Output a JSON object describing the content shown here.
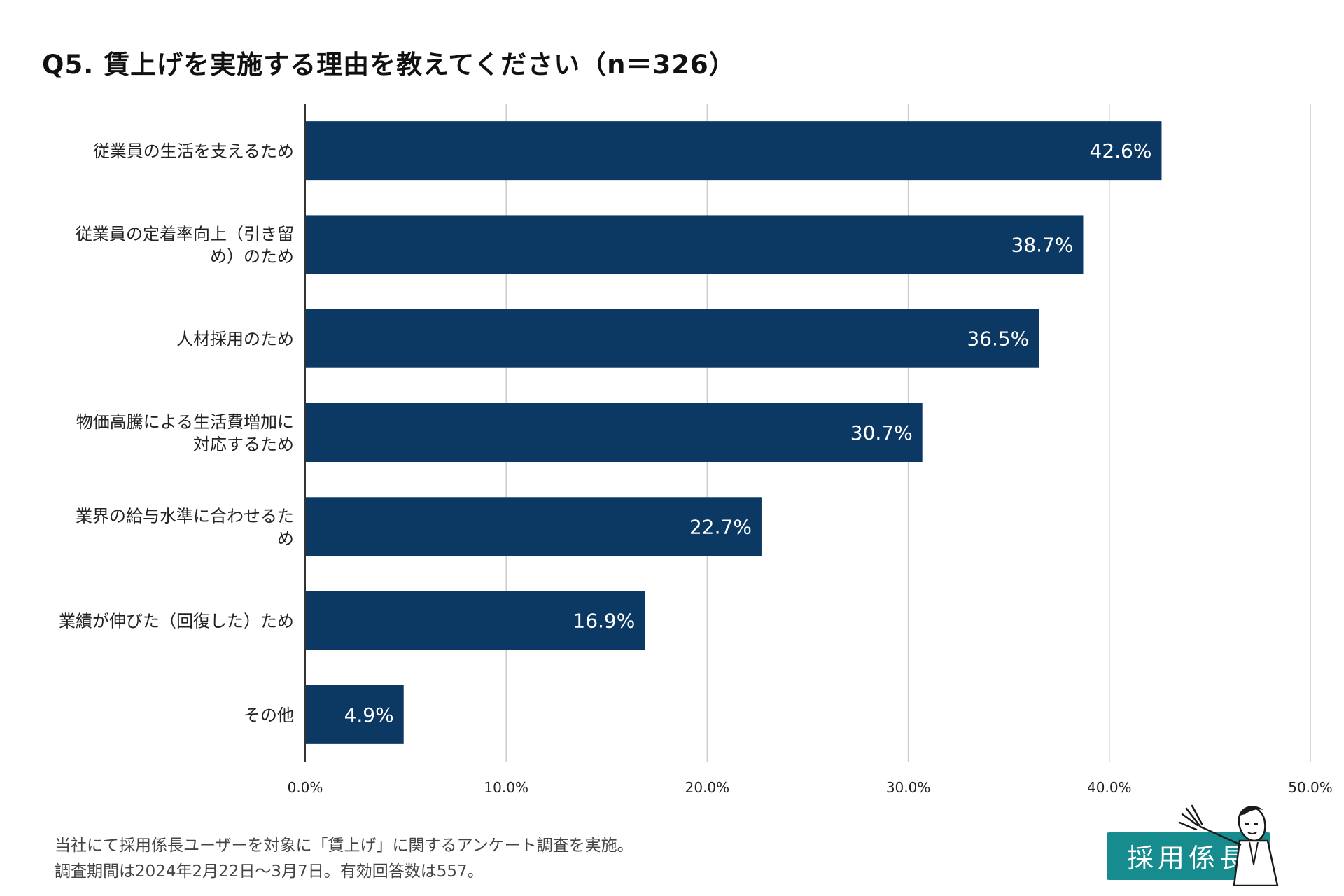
{
  "title": "Q5. 賃上げを実施する理由を教えてください（n＝326）",
  "colors": {
    "bar": "#0c3864",
    "bar_label": "#ffffff",
    "grid": "#cccccc",
    "axis": "#333333",
    "logo_teal": "#168c8e"
  },
  "chart_data": {
    "type": "bar",
    "orientation": "horizontal",
    "title": "Q5. 賃上げを実施する理由を教えてください（n＝326）",
    "categories": [
      [
        "従業員の生活を支えるため"
      ],
      [
        "従業員の定着率向上（引き留",
        "め）のため"
      ],
      [
        "人材採用のため"
      ],
      [
        "物価高騰による生活費増加に",
        "対応するため"
      ],
      [
        "業界の給与水準に合わせるた",
        "め"
      ],
      [
        "業績が伸びた（回復した）ため"
      ],
      [
        "その他"
      ]
    ],
    "values": [
      42.6,
      38.7,
      36.5,
      30.7,
      22.7,
      16.9,
      4.9
    ],
    "value_labels": [
      "42.6%",
      "38.7%",
      "36.5%",
      "30.7%",
      "22.7%",
      "16.9%",
      "4.9%"
    ],
    "xlim": [
      0,
      50
    ],
    "xticks": [
      0,
      10,
      20,
      30,
      40,
      50
    ],
    "xtick_labels": [
      "0.0%",
      "10.0%",
      "20.0%",
      "30.0%",
      "40.0%",
      "50.0%"
    ],
    "xlabel": "",
    "ylabel": "",
    "grid": true,
    "legend": "none"
  },
  "footer": {
    "line1": "当社にて採用係長ユーザーを対象に「賃上げ」に関するアンケート調査を実施。",
    "line2": "調査期間は2024年2月22日～3月7日。有効回答数は557。"
  },
  "logo": {
    "text": "採用係長",
    "icon": "mascot-waving-icon"
  }
}
